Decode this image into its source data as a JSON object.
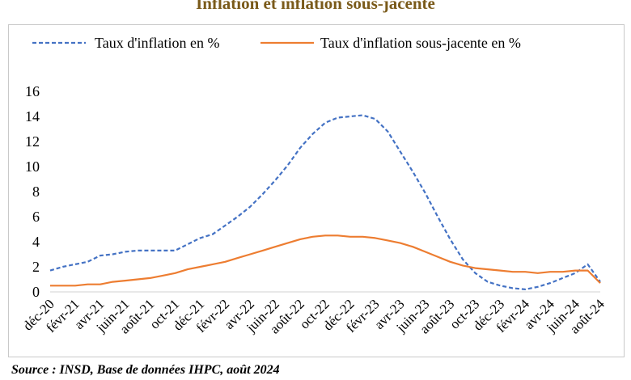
{
  "title": "Inflation et inflation sous-jacente",
  "source": "Source : INSD, Base de données IHPC, août 2024",
  "chart_data": {
    "type": "line",
    "ylim": [
      0,
      16
    ],
    "yticks": [
      0,
      2,
      4,
      6,
      8,
      10,
      12,
      14,
      16
    ],
    "grid": false,
    "legend_position": "top",
    "xtick_labels": [
      "déc-20",
      "févr-21",
      "avr-21",
      "juin-21",
      "août-21",
      "oct-21",
      "déc-21",
      "févr-22",
      "avr-22",
      "juin-22",
      "août-22",
      "oct-22",
      "déc-22",
      "févr-23",
      "avr-23",
      "juin-23",
      "août-23",
      "oct-23",
      "déc-23",
      "févr-24",
      "avr-24",
      "juin-24",
      "août-24"
    ],
    "x": [
      "déc-20",
      "janv-21",
      "févr-21",
      "mars-21",
      "avr-21",
      "mai-21",
      "juin-21",
      "juil-21",
      "août-21",
      "sept-21",
      "oct-21",
      "nov-21",
      "déc-21",
      "janv-22",
      "févr-22",
      "mars-22",
      "avr-22",
      "mai-22",
      "juin-22",
      "juil-22",
      "août-22",
      "sept-22",
      "oct-22",
      "nov-22",
      "déc-22",
      "janv-23",
      "févr-23",
      "mars-23",
      "avr-23",
      "mai-23",
      "juin-23",
      "juil-23",
      "août-23",
      "sept-23",
      "oct-23",
      "nov-23",
      "déc-23",
      "janv-24",
      "févr-24",
      "mars-24",
      "avr-24",
      "mai-24",
      "juin-24",
      "juil-24",
      "août-24"
    ],
    "series": [
      {
        "name": "Taux d'inflation en %",
        "color": "#4472c4",
        "style": "dashed",
        "values": [
          1.7,
          2.0,
          2.2,
          2.4,
          2.9,
          3.0,
          3.2,
          3.3,
          3.3,
          3.3,
          3.3,
          3.8,
          4.3,
          4.6,
          5.3,
          6.0,
          6.8,
          7.8,
          8.9,
          10.1,
          11.5,
          12.6,
          13.5,
          13.9,
          14.0,
          14.1,
          13.8,
          12.8,
          11.2,
          9.6,
          7.9,
          6.0,
          4.2,
          2.6,
          1.5,
          0.8,
          0.5,
          0.3,
          0.2,
          0.4,
          0.7,
          1.1,
          1.5,
          2.2,
          0.8
        ]
      },
      {
        "name": "Taux d'inflation sous-jacente en %",
        "color": "#ed7d31",
        "style": "solid",
        "values": [
          0.5,
          0.5,
          0.5,
          0.6,
          0.6,
          0.8,
          0.9,
          1.0,
          1.1,
          1.3,
          1.5,
          1.8,
          2.0,
          2.2,
          2.4,
          2.7,
          3.0,
          3.3,
          3.6,
          3.9,
          4.2,
          4.4,
          4.5,
          4.5,
          4.4,
          4.4,
          4.3,
          4.1,
          3.9,
          3.6,
          3.2,
          2.8,
          2.4,
          2.1,
          1.9,
          1.8,
          1.7,
          1.6,
          1.6,
          1.5,
          1.6,
          1.6,
          1.7,
          1.7,
          0.7
        ]
      }
    ]
  }
}
